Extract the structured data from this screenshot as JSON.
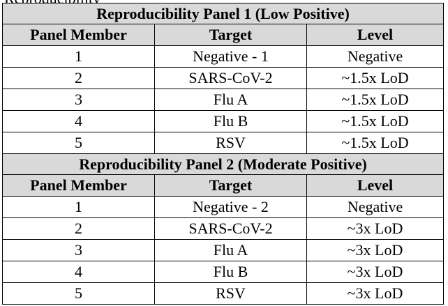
{
  "clipped_heading": "Reproducibility",
  "panels": [
    {
      "title": "Reproducibility Panel 1 (Low Positive)",
      "headers": [
        "Panel Member",
        "Target",
        "Level"
      ],
      "rows": [
        [
          "1",
          "Negative - 1",
          "Negative"
        ],
        [
          "2",
          "SARS-CoV-2",
          "~1.5x LoD"
        ],
        [
          "3",
          "Flu A",
          "~1.5x LoD"
        ],
        [
          "4",
          "Flu B",
          "~1.5x LoD"
        ],
        [
          "5",
          "RSV",
          "~1.5x LoD"
        ]
      ]
    },
    {
      "title": "Reproducibility Panel 2 (Moderate Positive)",
      "headers": [
        "Panel Member",
        "Target",
        "Level"
      ],
      "rows": [
        [
          "1",
          "Negative - 2",
          "Negative"
        ],
        [
          "2",
          "SARS-CoV-2",
          "~3x LoD"
        ],
        [
          "3",
          "Flu A",
          "~3x LoD"
        ],
        [
          "4",
          "Flu B",
          "~3x LoD"
        ],
        [
          "5",
          "RSV",
          "~3x LoD"
        ]
      ]
    }
  ]
}
